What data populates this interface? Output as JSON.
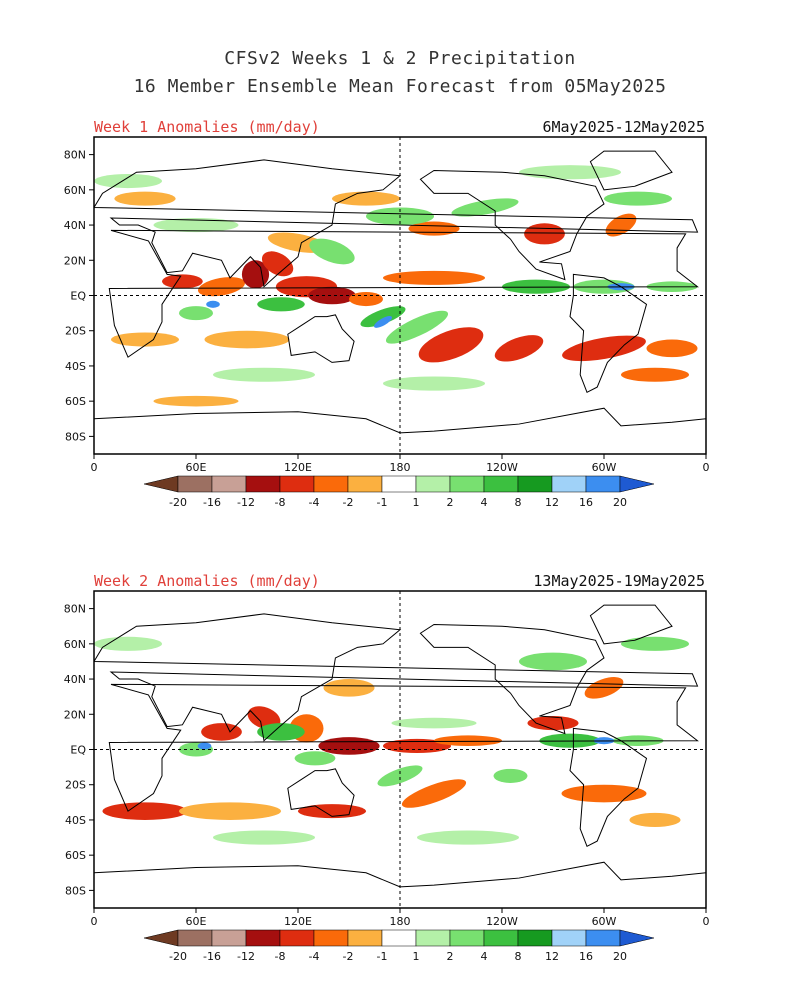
{
  "title_line1": "CFSv2 Weeks 1 & 2 Precipitation",
  "title_line2": "16 Member Ensemble Mean Forecast from 05May2025",
  "panels": [
    {
      "label": "Week 1 Anomalies (mm/day)",
      "dates": "6May2025-12May2025"
    },
    {
      "label": "Week 2 Anomalies (mm/day)",
      "dates": "13May2025-19May2025"
    }
  ],
  "lat_labels": [
    "80N",
    "60N",
    "40N",
    "20N",
    "EQ",
    "20S",
    "40S",
    "60S",
    "80S"
  ],
  "lon_labels": [
    "0",
    "60E",
    "120E",
    "180",
    "120W",
    "60W",
    "0"
  ],
  "colorbar": {
    "ticks": [
      "-20",
      "-16",
      "-12",
      "-8",
      "-4",
      "-2",
      "-1",
      "1",
      "2",
      "4",
      "8",
      "12",
      "16",
      "20"
    ],
    "colors": [
      "#6e3a22",
      "#9c7062",
      "#c8a096",
      "#a50f0f",
      "#de2d10",
      "#fa6a0a",
      "#fbb040",
      "#ffffff",
      "#b4f0a8",
      "#78e070",
      "#3cc040",
      "#169a20",
      "#a0d2f8",
      "#3c8ef0",
      "#1e5ad2"
    ]
  },
  "map_colors": {
    "dry_heavy": "#a50f0f",
    "dry_mid": "#de2d10",
    "dry_light": "#fa6a0a",
    "dry_weak": "#fbb040",
    "wet_weak": "#b4f0a8",
    "wet_light": "#78e070",
    "wet_mid": "#3cc040",
    "wet_strong": "#169a20",
    "wet_heavy": "#3c8ef0"
  }
}
